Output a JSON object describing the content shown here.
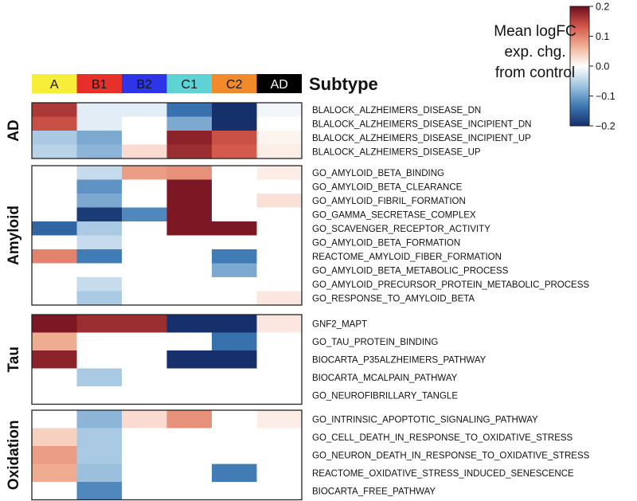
{
  "chart_data": {
    "type": "heatmap",
    "title": "Subtype",
    "columns": [
      {
        "label": "A",
        "color": "#f7ee3a"
      },
      {
        "label": "B1",
        "color": "#e8302b"
      },
      {
        "label": "B2",
        "color": "#2e35e8"
      },
      {
        "label": "C1",
        "color": "#5ed3d6"
      },
      {
        "label": "C2",
        "color": "#f08a2a"
      },
      {
        "label": "AD",
        "color": "#000000"
      }
    ],
    "colorbar": {
      "title": [
        "Mean logFC",
        "exp. chg.",
        "from control"
      ],
      "min": -0.2,
      "max": 0.2,
      "ticks": [
        "0.2",
        "0.1",
        "0.0",
        "−0.1",
        "−0.2"
      ],
      "low_color": "#15306b",
      "mid_color": "#ffffff",
      "high_color": "#6d0d1c"
    },
    "groups": [
      {
        "name": "AD",
        "rows": [
          {
            "label": "BLALOCK_ALZHEIMERS_DISEASE_DN",
            "values": [
              0.16,
              -0.02,
              -0.02,
              -0.14,
              -0.2,
              -0.01
            ]
          },
          {
            "label": "BLALOCK_ALZHEIMERS_DISEASE_INCIPIENT_DN",
            "values": [
              0.14,
              -0.02,
              0.0,
              -0.09,
              -0.2,
              0.0
            ]
          },
          {
            "label": "BLALOCK_ALZHEIMERS_DISEASE_INCIPIENT_UP",
            "values": [
              -0.06,
              -0.09,
              0.0,
              0.18,
              0.14,
              0.01
            ]
          },
          {
            "label": "BLALOCK_ALZHEIMERS_DISEASE_UP",
            "values": [
              -0.05,
              -0.08,
              0.03,
              0.17,
              0.13,
              0.015
            ]
          }
        ]
      },
      {
        "name": "Amyloid",
        "rows": [
          {
            "label": "GO_AMYLOID_BETA_BINDING",
            "values": [
              0.0,
              -0.04,
              0.08,
              0.09,
              0.0,
              0.015
            ]
          },
          {
            "label": "GO_AMYLOID_BETA_CLEARANCE",
            "values": [
              0.0,
              -0.11,
              0.0,
              0.19,
              0.0,
              0.0
            ]
          },
          {
            "label": "GO_AMYLOID_FIBRIL_FORMATION",
            "values": [
              0.0,
              -0.09,
              0.0,
              0.19,
              0.0,
              0.025
            ]
          },
          {
            "label": "GO_GAMMA_SECRETASE_COMPLEX",
            "values": [
              0.0,
              -0.19,
              -0.12,
              0.19,
              0.0,
              0.0
            ]
          },
          {
            "label": "GO_SCAVENGER_RECEPTOR_ACTIVITY",
            "values": [
              -0.15,
              -0.06,
              0.0,
              0.19,
              0.19,
              0.0
            ]
          },
          {
            "label": "GO_AMYLOID_BETA_FORMATION",
            "values": [
              0.0,
              -0.04,
              0.0,
              0.0,
              0.0,
              0.0
            ]
          },
          {
            "label": "REACTOME_AMYLOID_FIBER_FORMATION",
            "values": [
              0.1,
              -0.13,
              0.0,
              0.0,
              -0.13,
              0.0
            ]
          },
          {
            "label": "GO_AMYLOID_BETA_METABOLIC_PROCESS",
            "values": [
              0.0,
              0.0,
              0.0,
              0.0,
              -0.09,
              0.0
            ]
          },
          {
            "label": "GO_AMYLOID_PRECURSOR_PROTEIN_METABOLIC_PROCESS",
            "values": [
              0.0,
              -0.04,
              0.0,
              0.0,
              0.0,
              0.0
            ]
          },
          {
            "label": "GO_RESPONSE_TO_AMYLOID_BETA",
            "values": [
              0.0,
              -0.06,
              0.0,
              0.0,
              0.0,
              0.02
            ]
          }
        ]
      },
      {
        "name": "Tau",
        "rows": [
          {
            "label": "GNF2_MAPT",
            "values": [
              0.19,
              0.17,
              0.17,
              -0.2,
              -0.2,
              0.02
            ]
          },
          {
            "label": "GO_TAU_PROTEIN_BINDING",
            "values": [
              0.07,
              0.0,
              0.0,
              0.0,
              -0.14,
              0.0
            ]
          },
          {
            "label": "BIOCARTA_P35ALZHEIMERS_PATHWAY",
            "values": [
              0.18,
              0.0,
              0.0,
              -0.2,
              -0.2,
              0.0
            ]
          },
          {
            "label": "BIOCARTA_MCALPAIN_PATHWAY",
            "values": [
              0.0,
              -0.06,
              0.0,
              0.0,
              0.0,
              0.0
            ]
          },
          {
            "label": "GO_NEUROFIBRILLARY_TANGLE",
            "values": [
              0.0,
              0.0,
              0.0,
              0.0,
              0.0,
              0.0
            ]
          }
        ]
      },
      {
        "name": "Oxidation",
        "rows": [
          {
            "label": "GO_INTRINSIC_APOPTOTIC_SIGNALING_PATHWAY",
            "values": [
              0.0,
              -0.08,
              0.03,
              0.09,
              0.0,
              0.015
            ]
          },
          {
            "label": "GO_CELL_DEATH_IN_RESPONSE_TO_OXIDATIVE_STRESS",
            "values": [
              0.04,
              -0.06,
              0.0,
              0.0,
              0.0,
              0.0
            ]
          },
          {
            "label": "GO_NEURON_DEATH_IN_RESPONSE_TO_OXIDATIVE_STRESS",
            "values": [
              0.08,
              -0.06,
              0.0,
              0.0,
              0.0,
              0.0
            ]
          },
          {
            "label": "REACTOME_OXIDATIVE_STRESS_INDUCED_SENESCENCE",
            "values": [
              0.07,
              -0.07,
              0.0,
              0.0,
              -0.13,
              0.0
            ]
          },
          {
            "label": "BIOCARTA_FREE_PATHWAY",
            "values": [
              0.0,
              -0.12,
              0.0,
              0.0,
              0.0,
              0.0
            ]
          }
        ]
      }
    ]
  }
}
